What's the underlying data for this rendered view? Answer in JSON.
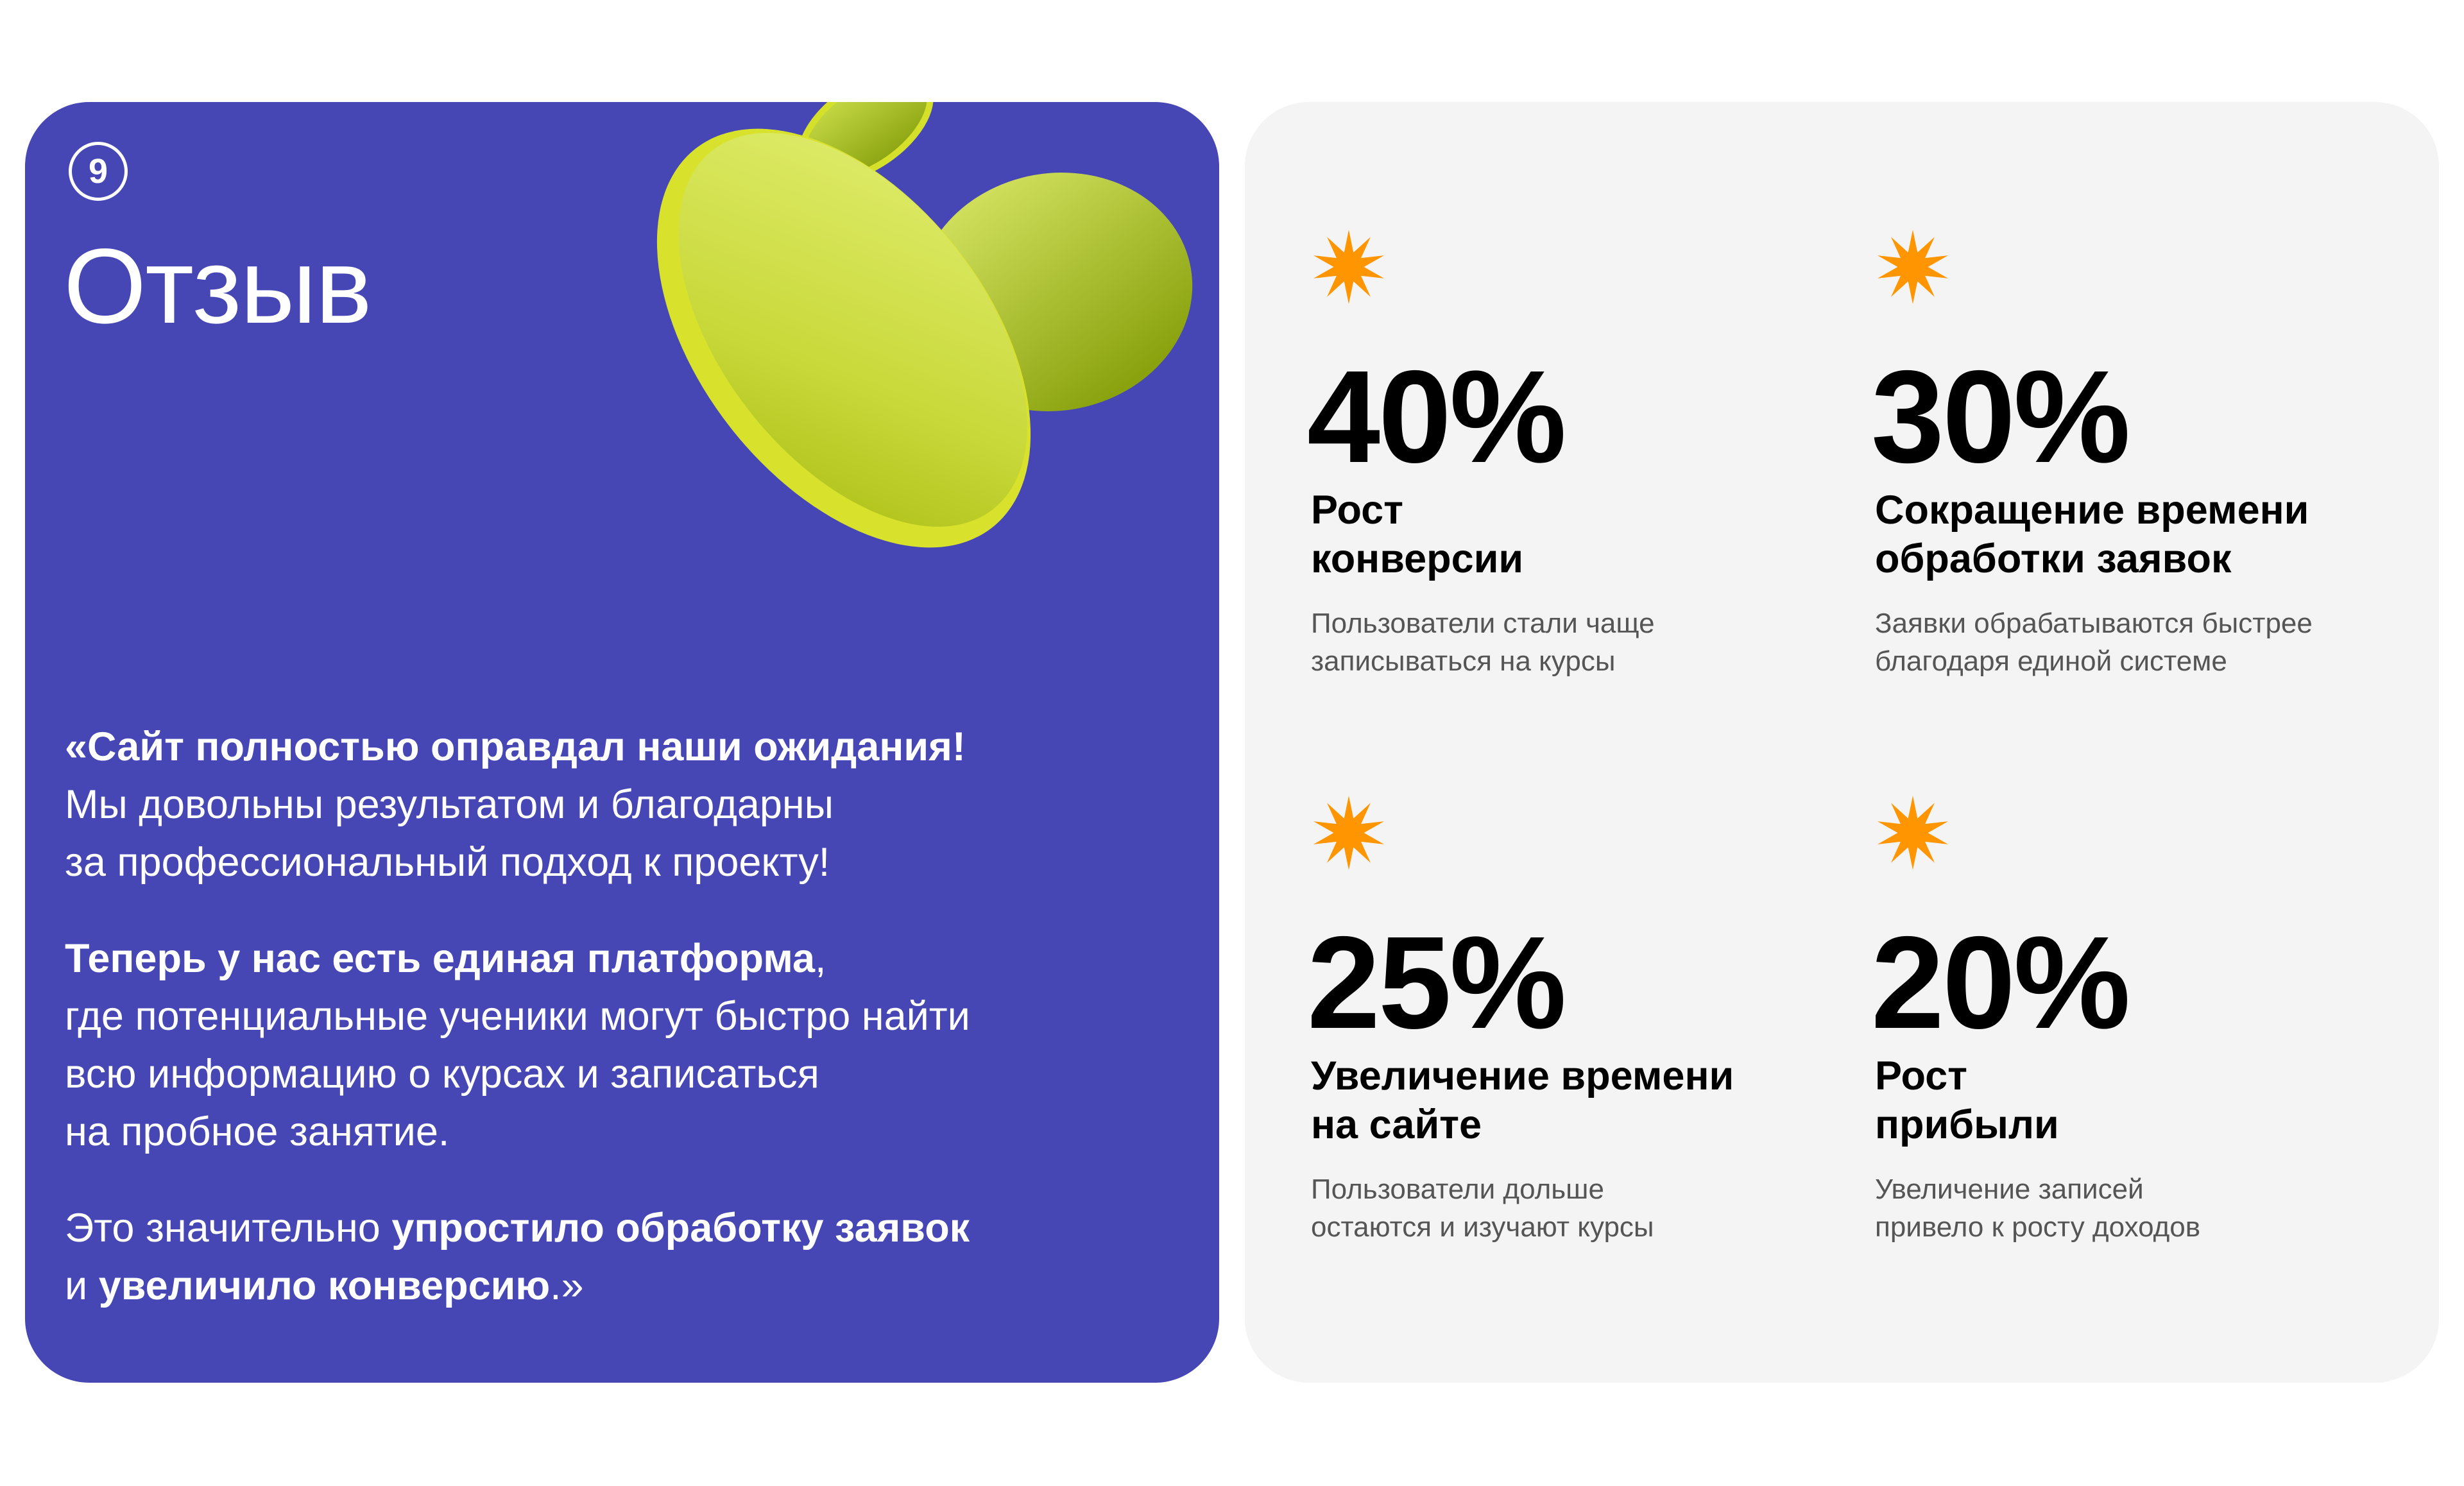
{
  "left_card": {
    "badge": "9",
    "title": "Отзыв",
    "quote": {
      "p1_bold": "«Сайт полностью оправдал наши ожидания!",
      "p1_rest_1": "Мы довольны результатом и благодарны",
      "p1_rest_2": "за профессиональный подход к проекту!",
      "p2_bold": "Теперь у нас есть единая платформа",
      "p2_comma": ",",
      "p2_rest_1": "где потенциальные ученики могут быстро найти",
      "p2_rest_2": "всю информацию о курсах и записаться",
      "p2_rest_3": "на пробное занятие.",
      "p3_a": "Это значительно ",
      "p3_b_bold": "упростило обработку заявок",
      "p3_c": "и ",
      "p3_d_bold": "увеличило конверсию",
      "p3_e": ".»"
    },
    "blob_color": "#cfe03a",
    "background": "#4647b4"
  },
  "stats": [
    {
      "icon": "star-burst-icon",
      "value": "40%",
      "title": "Рост\nконверсии",
      "desc": "Пользователи стали чаще\nзаписываться на курсы"
    },
    {
      "icon": "star-burst-icon",
      "value": "30%",
      "title": "Сокращение времени\nобработки заявок",
      "desc": "Заявки обрабатываются быстрее\nблагодаря единой системе"
    },
    {
      "icon": "star-burst-icon",
      "value": "25%",
      "title": "Увеличение времени\nна сайте",
      "desc": "Пользователи дольше\nостаются и изучают курсы"
    },
    {
      "icon": "star-burst-icon",
      "value": "20%",
      "title": "Рост\nприбыли",
      "desc": "Увеличение записей\nпривело к росту доходов"
    }
  ],
  "accent": "#ff9500"
}
